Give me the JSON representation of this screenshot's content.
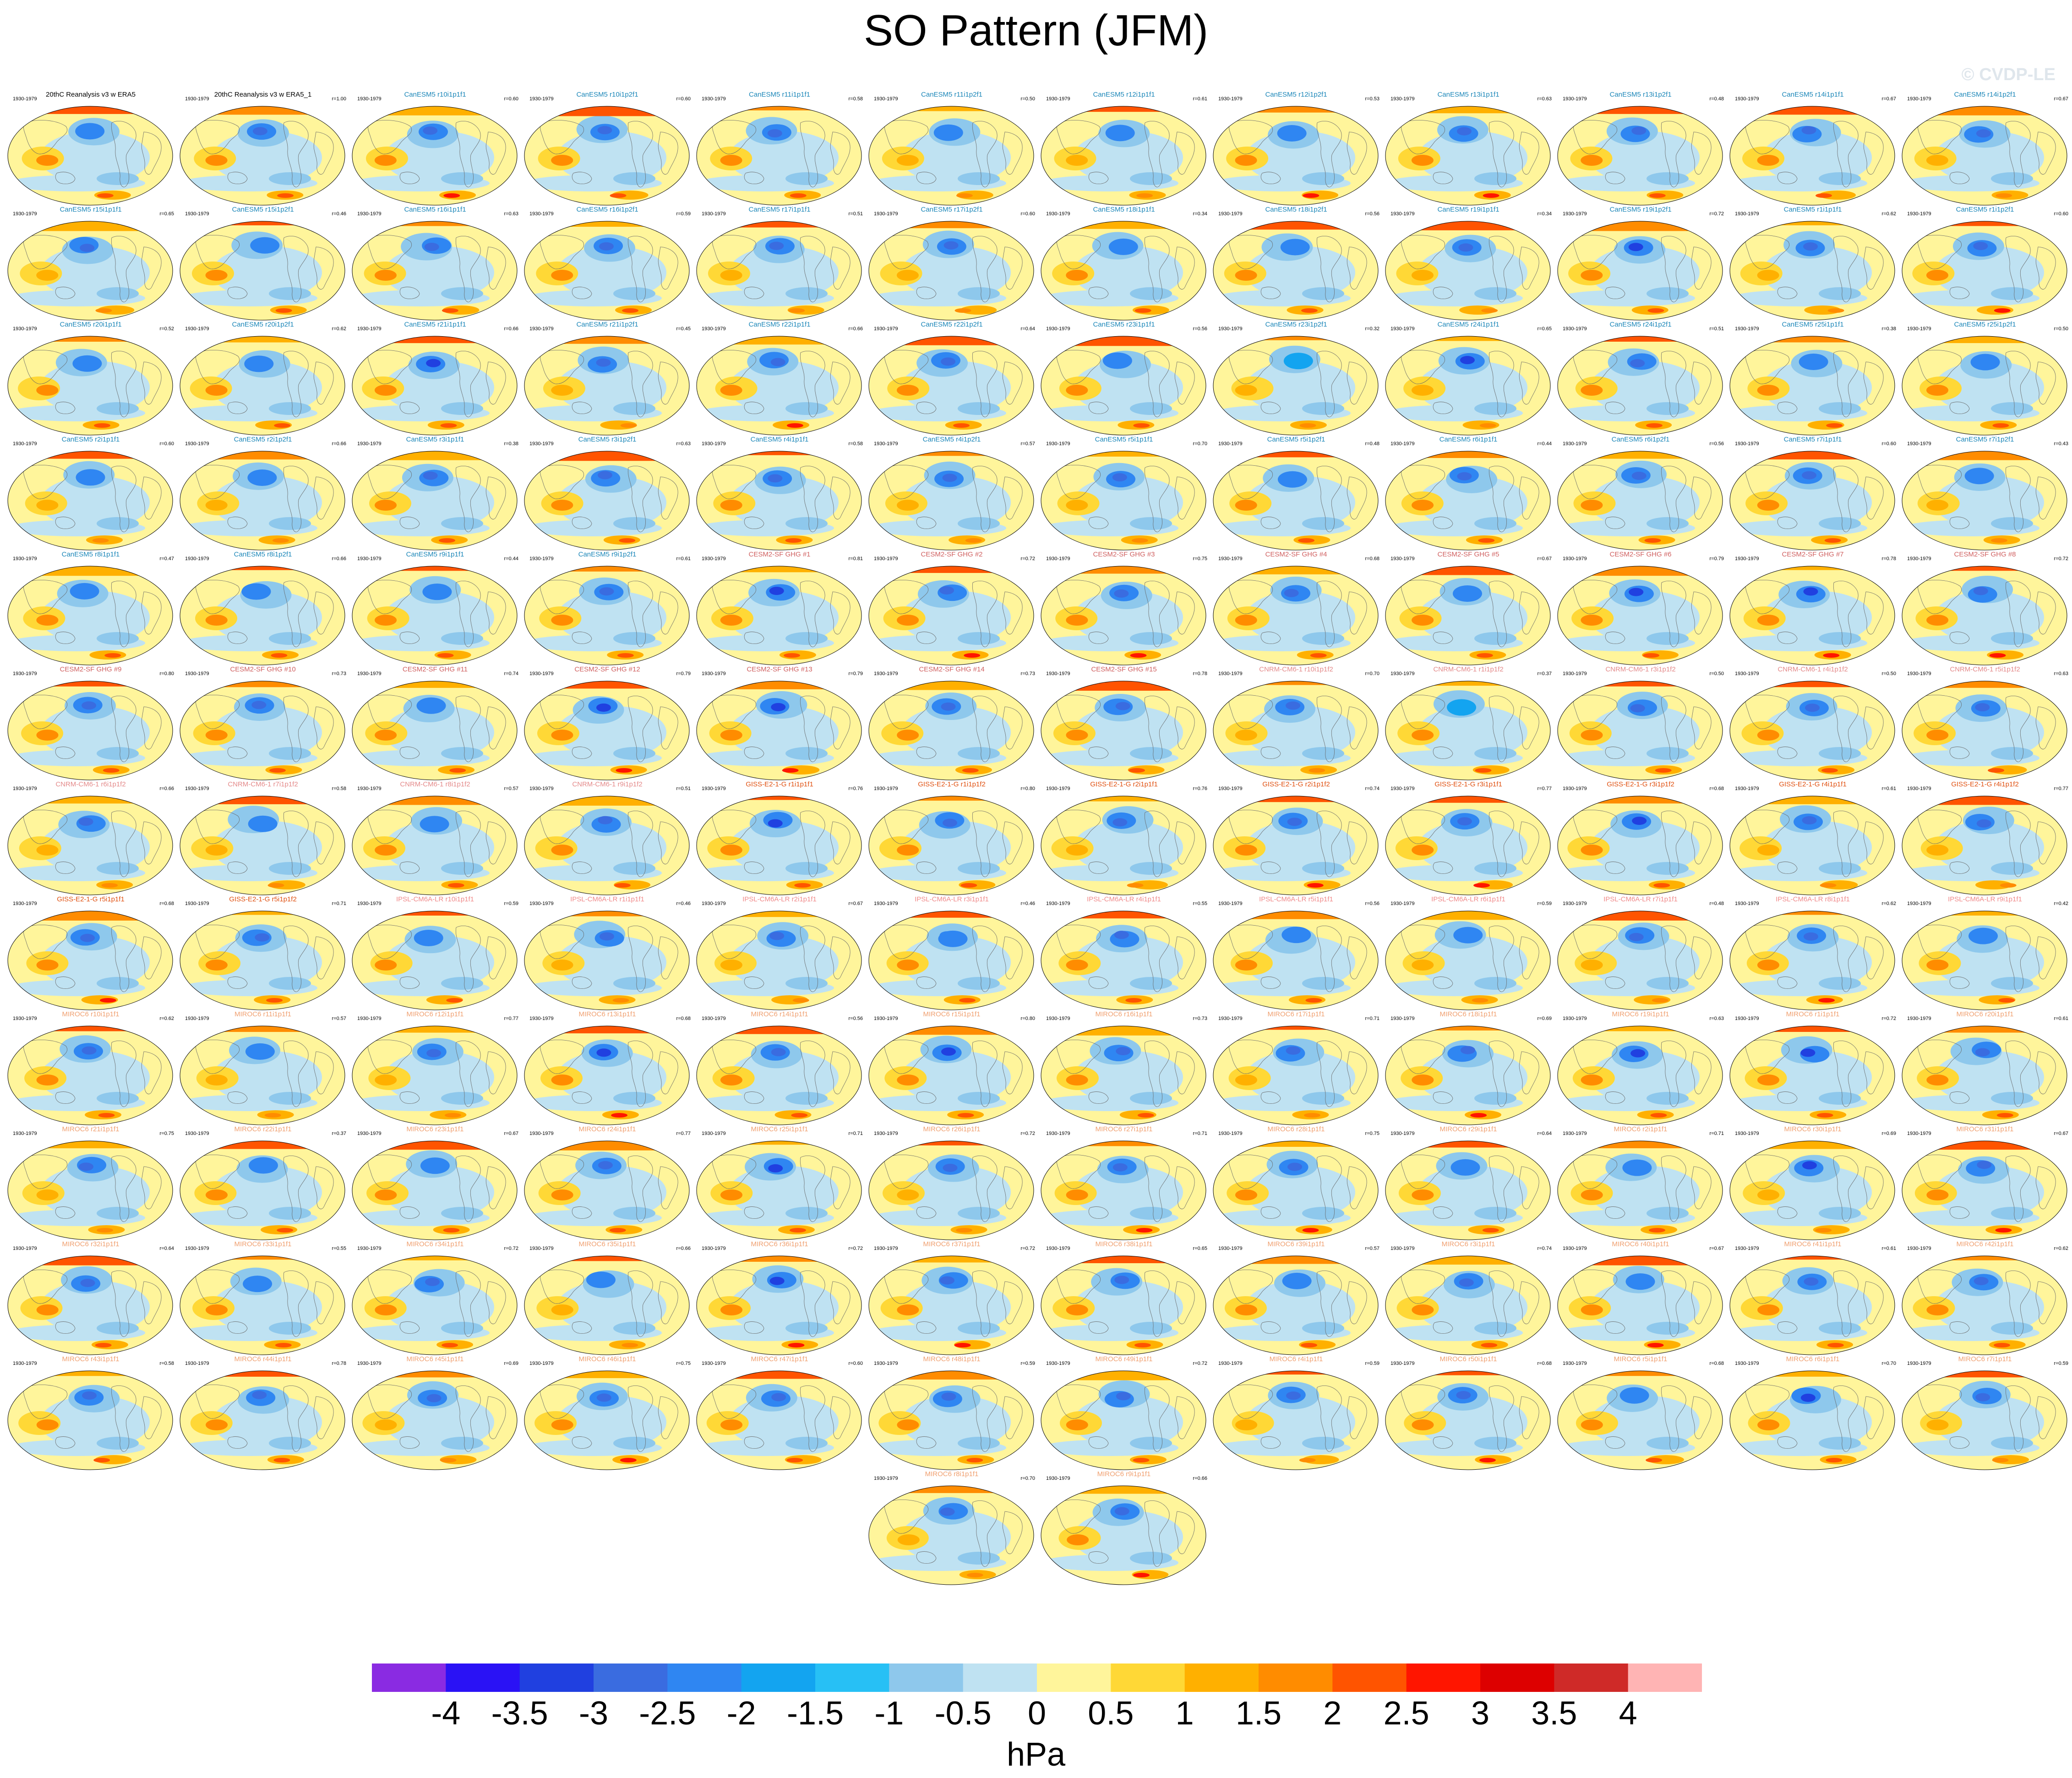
{
  "title": "SO Pattern (JFM)",
  "watermark": "© CVDP-LE",
  "chart_data": {
    "type": "heatmap",
    "title": "SO Pattern (JFM)",
    "variable_units": "hPa",
    "period": "1930-1979",
    "colorbar": {
      "label": "hPa",
      "tick_labels": [
        "-4",
        "-3.5",
        "-3",
        "-2.5",
        "-2",
        "-1.5",
        "-1",
        "-0.5",
        "0",
        "0.5",
        "1",
        "1.5",
        "2",
        "2.5",
        "3",
        "3.5",
        "4"
      ],
      "range": [
        -4,
        4
      ],
      "step": 0.5,
      "colors": [
        "#8a2be2",
        "#2a12f5",
        "#2040e0",
        "#3a6ce0",
        "#2f86f2",
        "#13a4f0",
        "#27c0f5",
        "#8ec8ec",
        "#bfe2f2",
        "#fff59b",
        "#ffd836",
        "#ffb000",
        "#ff8c00",
        "#ff5400",
        "#ff1500",
        "#dd0000",
        "#cf2a28",
        "#ffb4b4"
      ]
    },
    "panels": [
      {
        "title": "20thC Reanalysis v3 w ERA5",
        "period": "1930-1979",
        "corr": ""
      },
      {
        "title": "20thC Reanalysis v3 w ERA5_1",
        "period": "1930-1979",
        "corr": "r=1.00"
      },
      {
        "title": "CanESM5 r10i1p1f1",
        "period": "1930-1979",
        "corr": "r=0.60"
      },
      {
        "title": "CanESM5 r10i1p2f1",
        "period": "1930-1979",
        "corr": "r=0.60"
      },
      {
        "title": "CanESM5 r11i1p1f1",
        "period": "1930-1979",
        "corr": "r=0.58"
      },
      {
        "title": "CanESM5 r11i1p2f1",
        "period": "1930-1979",
        "corr": "r=0.50"
      },
      {
        "title": "CanESM5 r12i1p1f1",
        "period": "1930-1979",
        "corr": "r=0.61"
      },
      {
        "title": "CanESM5 r12i1p2f1",
        "period": "1930-1979",
        "corr": "r=0.53"
      },
      {
        "title": "CanESM5 r13i1p1f1",
        "period": "1930-1979",
        "corr": "r=0.63"
      },
      {
        "title": "CanESM5 r13i1p2f1",
        "period": "1930-1979",
        "corr": "r=0.48"
      },
      {
        "title": "CanESM5 r14i1p1f1",
        "period": "1930-1979",
        "corr": "r=0.67"
      },
      {
        "title": "CanESM5 r14i1p2f1",
        "period": "1930-1979",
        "corr": "r=0.67"
      },
      {
        "title": "CanESM5 r15i1p1f1",
        "period": "1930-1979",
        "corr": "r=0.65"
      },
      {
        "title": "CanESM5 r15i1p2f1",
        "period": "1930-1979",
        "corr": "r=0.46"
      },
      {
        "title": "CanESM5 r16i1p1f1",
        "period": "1930-1979",
        "corr": "r=0.63"
      },
      {
        "title": "CanESM5 r16i1p2f1",
        "period": "1930-1979",
        "corr": "r=0.59"
      },
      {
        "title": "CanESM5 r17i1p1f1",
        "period": "1930-1979",
        "corr": "r=0.51"
      },
      {
        "title": "CanESM5 r17i1p2f1",
        "period": "1930-1979",
        "corr": "r=0.60"
      },
      {
        "title": "CanESM5 r18i1p1f1",
        "period": "1930-1979",
        "corr": "r=0.34"
      },
      {
        "title": "CanESM5 r18i1p2f1",
        "period": "1930-1979",
        "corr": "r=0.56"
      },
      {
        "title": "CanESM5 r19i1p1f1",
        "period": "1930-1979",
        "corr": "r=0.34"
      },
      {
        "title": "CanESM5 r19i1p2f1",
        "period": "1930-1979",
        "corr": "r=0.72"
      },
      {
        "title": "CanESM5 r1i1p1f1",
        "period": "1930-1979",
        "corr": "r=0.62"
      },
      {
        "title": "CanESM5 r1i1p2f1",
        "period": "1930-1979",
        "corr": "r=0.60"
      },
      {
        "title": "CanESM5 r20i1p1f1",
        "period": "1930-1979",
        "corr": "r=0.52"
      },
      {
        "title": "CanESM5 r20i1p2f1",
        "period": "1930-1979",
        "corr": "r=0.62"
      },
      {
        "title": "CanESM5 r21i1p1f1",
        "period": "1930-1979",
        "corr": "r=0.66"
      },
      {
        "title": "CanESM5 r21i1p2f1",
        "period": "1930-1979",
        "corr": "r=0.45"
      },
      {
        "title": "CanESM5 r22i1p1f1",
        "period": "1930-1979",
        "corr": "r=0.66"
      },
      {
        "title": "CanESM5 r22i1p2f1",
        "period": "1930-1979",
        "corr": "r=0.64"
      },
      {
        "title": "CanESM5 r23i1p1f1",
        "period": "1930-1979",
        "corr": "r=0.56"
      },
      {
        "title": "CanESM5 r23i1p2f1",
        "period": "1930-1979",
        "corr": "r=0.32"
      },
      {
        "title": "CanESM5 r24i1p1f1",
        "period": "1930-1979",
        "corr": "r=0.65"
      },
      {
        "title": "CanESM5 r24i1p2f1",
        "period": "1930-1979",
        "corr": "r=0.51"
      },
      {
        "title": "CanESM5 r25i1p1f1",
        "period": "1930-1979",
        "corr": "r=0.38"
      },
      {
        "title": "CanESM5 r25i1p2f1",
        "period": "1930-1979",
        "corr": "r=0.50"
      },
      {
        "title": "CanESM5 r2i1p1f1",
        "period": "1930-1979",
        "corr": "r=0.60"
      },
      {
        "title": "CanESM5 r2i1p2f1",
        "period": "1930-1979",
        "corr": "r=0.66"
      },
      {
        "title": "CanESM5 r3i1p1f1",
        "period": "1930-1979",
        "corr": "r=0.38"
      },
      {
        "title": "CanESM5 r3i1p2f1",
        "period": "1930-1979",
        "corr": "r=0.63"
      },
      {
        "title": "CanESM5 r4i1p1f1",
        "period": "1930-1979",
        "corr": "r=0.58"
      },
      {
        "title": "CanESM5 r4i1p2f1",
        "period": "1930-1979",
        "corr": "r=0.57"
      },
      {
        "title": "CanESM5 r5i1p1f1",
        "period": "1930-1979",
        "corr": "r=0.70"
      },
      {
        "title": "CanESM5 r5i1p2f1",
        "period": "1930-1979",
        "corr": "r=0.48"
      },
      {
        "title": "CanESM5 r6i1p1f1",
        "period": "1930-1979",
        "corr": "r=0.44"
      },
      {
        "title": "CanESM5 r6i1p2f1",
        "period": "1930-1979",
        "corr": "r=0.56"
      },
      {
        "title": "CanESM5 r7i1p1f1",
        "period": "1930-1979",
        "corr": "r=0.60"
      },
      {
        "title": "CanESM5 r7i1p2f1",
        "period": "1930-1979",
        "corr": "r=0.43"
      },
      {
        "title": "CanESM5 r8i1p1f1",
        "period": "1930-1979",
        "corr": "r=0.47"
      },
      {
        "title": "CanESM5 r8i1p2f1",
        "period": "1930-1979",
        "corr": "r=0.66"
      },
      {
        "title": "CanESM5 r9i1p1f1",
        "period": "1930-1979",
        "corr": "r=0.44"
      },
      {
        "title": "CanESM5 r9i1p2f1",
        "period": "1930-1979",
        "corr": "r=0.61"
      },
      {
        "title": "CESM2-SF GHG #1",
        "period": "1930-1979",
        "corr": "r=0.81"
      },
      {
        "title": "CESM2-SF GHG #2",
        "period": "1930-1979",
        "corr": "r=0.72"
      },
      {
        "title": "CESM2-SF GHG #3",
        "period": "1930-1979",
        "corr": "r=0.75"
      },
      {
        "title": "CESM2-SF GHG #4",
        "period": "1930-1979",
        "corr": "r=0.68"
      },
      {
        "title": "CESM2-SF GHG #5",
        "period": "1930-1979",
        "corr": "r=0.67"
      },
      {
        "title": "CESM2-SF GHG #6",
        "period": "1930-1979",
        "corr": "r=0.79"
      },
      {
        "title": "CESM2-SF GHG #7",
        "period": "1930-1979",
        "corr": "r=0.78"
      },
      {
        "title": "CESM2-SF GHG #8",
        "period": "1930-1979",
        "corr": "r=0.72"
      },
      {
        "title": "CESM2-SF GHG #9",
        "period": "1930-1979",
        "corr": "r=0.80"
      },
      {
        "title": "CESM2-SF GHG #10",
        "period": "1930-1979",
        "corr": "r=0.73"
      },
      {
        "title": "CESM2-SF GHG #11",
        "period": "1930-1979",
        "corr": "r=0.74"
      },
      {
        "title": "CESM2-SF GHG #12",
        "period": "1930-1979",
        "corr": "r=0.79"
      },
      {
        "title": "CESM2-SF GHG #13",
        "period": "1930-1979",
        "corr": "r=0.79"
      },
      {
        "title": "CESM2-SF GHG #14",
        "period": "1930-1979",
        "corr": "r=0.73"
      },
      {
        "title": "CESM2-SF GHG #15",
        "period": "1930-1979",
        "corr": "r=0.78"
      },
      {
        "title": "CNRM-CM6-1 r10i1p1f2",
        "period": "1930-1979",
        "corr": "r=0.70"
      },
      {
        "title": "CNRM-CM6-1 r1i1p1f2",
        "period": "1930-1979",
        "corr": "r=0.37"
      },
      {
        "title": "CNRM-CM6-1 r3i1p1f2",
        "period": "1930-1979",
        "corr": "r=0.50"
      },
      {
        "title": "CNRM-CM6-1 r4i1p1f2",
        "period": "1930-1979",
        "corr": "r=0.50"
      },
      {
        "title": "CNRM-CM6-1 r5i1p1f2",
        "period": "1930-1979",
        "corr": "r=0.63"
      },
      {
        "title": "CNRM-CM6-1 r6i1p1f2",
        "period": "1930-1979",
        "corr": "r=0.66"
      },
      {
        "title": "CNRM-CM6-1 r7i1p1f2",
        "period": "1930-1979",
        "corr": "r=0.58"
      },
      {
        "title": "CNRM-CM6-1 r8i1p1f2",
        "period": "1930-1979",
        "corr": "r=0.57"
      },
      {
        "title": "CNRM-CM6-1 r9i1p1f2",
        "period": "1930-1979",
        "corr": "r=0.51"
      },
      {
        "title": "GISS-E2-1-G r1i1p1f1",
        "period": "1930-1979",
        "corr": "r=0.76"
      },
      {
        "title": "GISS-E2-1-G r1i1p1f2",
        "period": "1930-1979",
        "corr": "r=0.80"
      },
      {
        "title": "GISS-E2-1-G r2i1p1f1",
        "period": "1930-1979",
        "corr": "r=0.76"
      },
      {
        "title": "GISS-E2-1-G r2i1p1f2",
        "period": "1930-1979",
        "corr": "r=0.74"
      },
      {
        "title": "GISS-E2-1-G r3i1p1f1",
        "period": "1930-1979",
        "corr": "r=0.77"
      },
      {
        "title": "GISS-E2-1-G r3i1p1f2",
        "period": "1930-1979",
        "corr": "r=0.68"
      },
      {
        "title": "GISS-E2-1-G r4i1p1f1",
        "period": "1930-1979",
        "corr": "r=0.61"
      },
      {
        "title": "GISS-E2-1-G r4i1p1f2",
        "period": "1930-1979",
        "corr": "r=0.77"
      },
      {
        "title": "GISS-E2-1-G r5i1p1f1",
        "period": "1930-1979",
        "corr": "r=0.68"
      },
      {
        "title": "GISS-E2-1-G r5i1p1f2",
        "period": "1930-1979",
        "corr": "r=0.71"
      },
      {
        "title": "IPSL-CM6A-LR r10i1p1f1",
        "period": "1930-1979",
        "corr": "r=0.59"
      },
      {
        "title": "IPSL-CM6A-LR r1i1p1f1",
        "period": "1930-1979",
        "corr": "r=0.46"
      },
      {
        "title": "IPSL-CM6A-LR r2i1p1f1",
        "period": "1930-1979",
        "corr": "r=0.67"
      },
      {
        "title": "IPSL-CM6A-LR r3i1p1f1",
        "period": "1930-1979",
        "corr": "r=0.46"
      },
      {
        "title": "IPSL-CM6A-LR r4i1p1f1",
        "period": "1930-1979",
        "corr": "r=0.55"
      },
      {
        "title": "IPSL-CM6A-LR r5i1p1f1",
        "period": "1930-1979",
        "corr": "r=0.56"
      },
      {
        "title": "IPSL-CM6A-LR r6i1p1f1",
        "period": "1930-1979",
        "corr": "r=0.59"
      },
      {
        "title": "IPSL-CM6A-LR r7i1p1f1",
        "period": "1930-1979",
        "corr": "r=0.48"
      },
      {
        "title": "IPSL-CM6A-LR r8i1p1f1",
        "period": "1930-1979",
        "corr": "r=0.62"
      },
      {
        "title": "IPSL-CM6A-LR r9i1p1f1",
        "period": "1930-1979",
        "corr": "r=0.42"
      },
      {
        "title": "MIROC6 r10i1p1f1",
        "period": "1930-1979",
        "corr": "r=0.62"
      },
      {
        "title": "MIROC6 r11i1p1f1",
        "period": "1930-1979",
        "corr": "r=0.57"
      },
      {
        "title": "MIROC6 r12i1p1f1",
        "period": "1930-1979",
        "corr": "r=0.77"
      },
      {
        "title": "MIROC6 r13i1p1f1",
        "period": "1930-1979",
        "corr": "r=0.68"
      },
      {
        "title": "MIROC6 r14i1p1f1",
        "period": "1930-1979",
        "corr": "r=0.56"
      },
      {
        "title": "MIROC6 r15i1p1f1",
        "period": "1930-1979",
        "corr": "r=0.80"
      },
      {
        "title": "MIROC6 r16i1p1f1",
        "period": "1930-1979",
        "corr": "r=0.73"
      },
      {
        "title": "MIROC6 r17i1p1f1",
        "period": "1930-1979",
        "corr": "r=0.71"
      },
      {
        "title": "MIROC6 r18i1p1f1",
        "period": "1930-1979",
        "corr": "r=0.69"
      },
      {
        "title": "MIROC6 r19i1p1f1",
        "period": "1930-1979",
        "corr": "r=0.63"
      },
      {
        "title": "MIROC6 r1i1p1f1",
        "period": "1930-1979",
        "corr": "r=0.72"
      },
      {
        "title": "MIROC6 r20i1p1f1",
        "period": "1930-1979",
        "corr": "r=0.61"
      },
      {
        "title": "MIROC6 r21i1p1f1",
        "period": "1930-1979",
        "corr": "r=0.75"
      },
      {
        "title": "MIROC6 r22i1p1f1",
        "period": "1930-1979",
        "corr": "r=0.37"
      },
      {
        "title": "MIROC6 r23i1p1f1",
        "period": "1930-1979",
        "corr": "r=0.67"
      },
      {
        "title": "MIROC6 r24i1p1f1",
        "period": "1930-1979",
        "corr": "r=0.77"
      },
      {
        "title": "MIROC6 r25i1p1f1",
        "period": "1930-1979",
        "corr": "r=0.71"
      },
      {
        "title": "MIROC6 r26i1p1f1",
        "period": "1930-1979",
        "corr": "r=0.72"
      },
      {
        "title": "MIROC6 r27i1p1f1",
        "period": "1930-1979",
        "corr": "r=0.71"
      },
      {
        "title": "MIROC6 r28i1p1f1",
        "period": "1930-1979",
        "corr": "r=0.75"
      },
      {
        "title": "MIROC6 r29i1p1f1",
        "period": "1930-1979",
        "corr": "r=0.64"
      },
      {
        "title": "MIROC6 r2i1p1f1",
        "period": "1930-1979",
        "corr": "r=0.71"
      },
      {
        "title": "MIROC6 r30i1p1f1",
        "period": "1930-1979",
        "corr": "r=0.69"
      },
      {
        "title": "MIROC6 r31i1p1f1",
        "period": "1930-1979",
        "corr": "r=0.67"
      },
      {
        "title": "MIROC6 r32i1p1f1",
        "period": "1930-1979",
        "corr": "r=0.64"
      },
      {
        "title": "MIROC6 r33i1p1f1",
        "period": "1930-1979",
        "corr": "r=0.55"
      },
      {
        "title": "MIROC6 r34i1p1f1",
        "period": "1930-1979",
        "corr": "r=0.72"
      },
      {
        "title": "MIROC6 r35i1p1f1",
        "period": "1930-1979",
        "corr": "r=0.66"
      },
      {
        "title": "MIROC6 r36i1p1f1",
        "period": "1930-1979",
        "corr": "r=0.72"
      },
      {
        "title": "MIROC6 r37i1p1f1",
        "period": "1930-1979",
        "corr": "r=0.72"
      },
      {
        "title": "MIROC6 r38i1p1f1",
        "period": "1930-1979",
        "corr": "r=0.65"
      },
      {
        "title": "MIROC6 r39i1p1f1",
        "period": "1930-1979",
        "corr": "r=0.57"
      },
      {
        "title": "MIROC6 r3i1p1f1",
        "period": "1930-1979",
        "corr": "r=0.74"
      },
      {
        "title": "MIROC6 r40i1p1f1",
        "period": "1930-1979",
        "corr": "r=0.67"
      },
      {
        "title": "MIROC6 r41i1p1f1",
        "period": "1930-1979",
        "corr": "r=0.61"
      },
      {
        "title": "MIROC6 r42i1p1f1",
        "period": "1930-1979",
        "corr": "r=0.62"
      },
      {
        "title": "MIROC6 r43i1p1f1",
        "period": "1930-1979",
        "corr": "r=0.58"
      },
      {
        "title": "MIROC6 r44i1p1f1",
        "period": "1930-1979",
        "corr": "r=0.78"
      },
      {
        "title": "MIROC6 r45i1p1f1",
        "period": "1930-1979",
        "corr": "r=0.69"
      },
      {
        "title": "MIROC6 r46i1p1f1",
        "period": "1930-1979",
        "corr": "r=0.75"
      },
      {
        "title": "MIROC6 r47i1p1f1",
        "period": "1930-1979",
        "corr": "r=0.60"
      },
      {
        "title": "MIROC6 r48i1p1f1",
        "period": "1930-1979",
        "corr": "r=0.59"
      },
      {
        "title": "MIROC6 r49i1p1f1",
        "period": "1930-1979",
        "corr": "r=0.72"
      },
      {
        "title": "MIROC6 r4i1p1f1",
        "period": "1930-1979",
        "corr": "r=0.59"
      },
      {
        "title": "MIROC6 r50i1p1f1",
        "period": "1930-1979",
        "corr": "r=0.68"
      },
      {
        "title": "MIROC6 r5i1p1f1",
        "period": "1930-1979",
        "corr": "r=0.68"
      },
      {
        "title": "MIROC6 r6i1p1f1",
        "period": "1930-1979",
        "corr": "r=0.70"
      },
      {
        "title": "MIROC6 r7i1p1f1",
        "period": "1930-1979",
        "corr": "r=0.59"
      },
      {
        "title": "MIROC6 r8i1p1f1",
        "period": "1930-1979",
        "corr": "r=0.70"
      },
      {
        "title": "MIROC6 r9i1p1f1",
        "period": "1930-1979",
        "corr": "r=0.66"
      }
    ],
    "model_title_colors": {
      "20thC": "#000000",
      "CanESM5": "#1a86b8",
      "CESM2": "#d06060",
      "CNRM": "#e48a8a",
      "GISS": "#e05010",
      "IPSL": "#f08a8a",
      "MIROC6": "#f0a070"
    }
  }
}
